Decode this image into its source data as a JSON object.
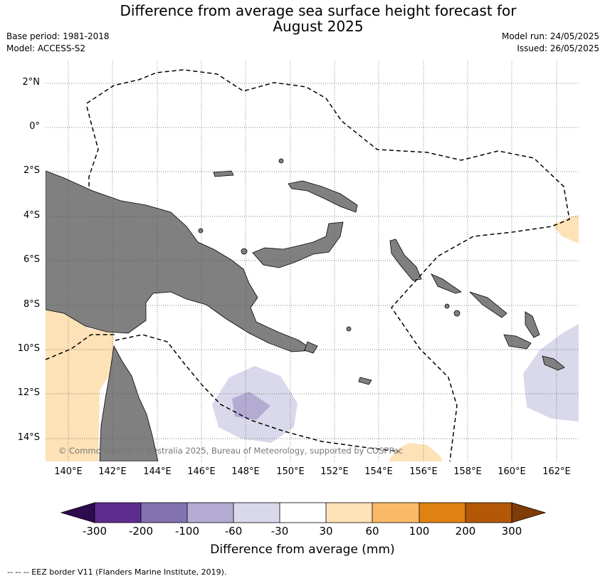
{
  "header": {
    "title_line1": "Difference from average sea surface height forecast for",
    "title_line2": "August 2025",
    "base_period": "Base period: 1981-2018",
    "model": "Model: ACCESS-S2",
    "model_run": "Model run: 24/05/2025",
    "issued": "Issued: 26/05/2025"
  },
  "map": {
    "lat_labels": [
      "2°N",
      "0°",
      "2°S",
      "4°S",
      "6°S",
      "8°S",
      "10°S",
      "12°S",
      "14°S"
    ],
    "lon_labels": [
      "140°E",
      "142°E",
      "144°E",
      "146°E",
      "148°E",
      "150°E",
      "152°E",
      "154°E",
      "156°E",
      "158°E",
      "160°E",
      "162°E"
    ],
    "copyright": "© Commonwealth of Australia 2025, Bureau of Meteorology, supported by COSPPac",
    "land_color": "#808080",
    "grid": "dotted"
  },
  "colorbar": {
    "ticks": [
      "-300",
      "-200",
      "-100",
      "-60",
      "-30",
      "30",
      "60",
      "100",
      "200",
      "300"
    ],
    "colors": [
      "#2d0b4f",
      "#5e2c8f",
      "#8372b0",
      "#b3abd2",
      "#d9d9eb",
      "#ffffff",
      "#fde1b7",
      "#fbb968",
      "#e08213",
      "#b35806",
      "#7f3b08"
    ],
    "label": "Difference from average (mm)"
  },
  "footnote": "--  --  -- EEZ border V11 (Flanders Marine Institute, 2019)."
}
